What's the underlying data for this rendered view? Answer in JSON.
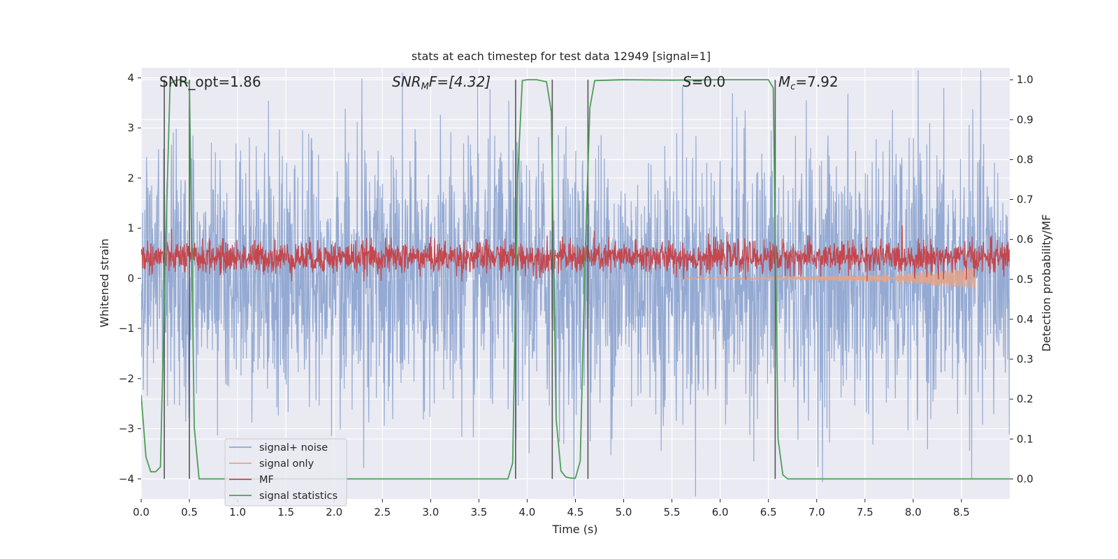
{
  "chart_data": {
    "type": "line",
    "title": "stats at each timestep for test data 12949 [signal=1]",
    "xlabel": "Time (s)",
    "ylabel_left": "Whitened strain",
    "ylabel_right": "Detection probability/MF",
    "xlim": [
      0.0,
      9.0
    ],
    "ylim_left": [
      -4.4,
      4.2
    ],
    "ylim_right": [
      -0.05,
      1.03
    ],
    "xticks": [
      0.0,
      0.5,
      1.0,
      1.5,
      2.0,
      2.5,
      3.0,
      3.5,
      4.0,
      4.5,
      5.0,
      5.5,
      6.0,
      6.5,
      7.0,
      7.5,
      8.0,
      8.5
    ],
    "xtick_labels": [
      "0.0",
      "0.5",
      "1.0",
      "1.5",
      "2.0",
      "2.5",
      "3.0",
      "3.5",
      "4.0",
      "4.5",
      "5.0",
      "5.5",
      "6.0",
      "6.5",
      "7.0",
      "7.5",
      "8.0",
      "8.5"
    ],
    "yticks_left": [
      -4,
      -3,
      -2,
      -1,
      0,
      1,
      2,
      3,
      4
    ],
    "ytick_labels_left": [
      "−4",
      "−3",
      "−2",
      "−1",
      "0",
      "1",
      "2",
      "3",
      "4"
    ],
    "yticks_right": [
      0.0,
      0.1,
      0.2,
      0.3,
      0.4,
      0.5,
      0.6,
      0.7,
      0.8,
      0.9,
      1.0
    ],
    "ytick_labels_right": [
      "0.0",
      "0.1",
      "0.2",
      "0.3",
      "0.4",
      "0.5",
      "0.6",
      "0.7",
      "0.8",
      "0.9",
      "1.0"
    ],
    "grid": true,
    "legend_position": "lower-left",
    "annotations": {
      "snr_opt": "SNR_opt=1.86",
      "snr_mf_prefix": "SNR",
      "snr_mf_sub": "M",
      "snr_mf_suffix": "F=[4.32]",
      "s_prefix": "S",
      "s_suffix": "=0.0",
      "mc_prefix": "M",
      "mc_sub": "c",
      "mc_suffix": "=7.92"
    },
    "series": [
      {
        "name": "signal+ noise",
        "color": "#8fa6d1",
        "style": "noise band, amplitude roughly ±2 with peaks to about ±3.5",
        "amplitude": 1.35
      },
      {
        "name": "signal only",
        "color": "#e3a48a",
        "style": "small chirp between 5.6 s and 8.65 s, amplitude below 0.25",
        "start": 5.6,
        "end": 8.65
      },
      {
        "name": "MF",
        "color": "#c4474d",
        "style": "noisy trace on right axis between about 0.50 and 0.62",
        "level": 0.555
      },
      {
        "name": "signal statistics",
        "color": "#4c9e57",
        "x": [
          0.0,
          0.05,
          0.1,
          0.15,
          0.2,
          0.25,
          0.3,
          0.35,
          0.4,
          0.45,
          0.5,
          0.55,
          0.6,
          0.65,
          0.7,
          1.0,
          2.0,
          3.0,
          3.8,
          3.85,
          3.9,
          3.95,
          4.0,
          4.1,
          4.2,
          4.25,
          4.3,
          4.35,
          4.4,
          4.45,
          4.5,
          4.55,
          4.6,
          4.65,
          4.7,
          5.0,
          5.5,
          6.0,
          6.5,
          6.55,
          6.6,
          6.65,
          6.7,
          7.0,
          8.0,
          9.0
        ],
        "y": [
          0.21,
          0.055,
          0.018,
          0.018,
          0.03,
          0.55,
          0.99,
          0.998,
          1.0,
          0.996,
          0.99,
          0.13,
          0.0,
          0.0,
          0.0,
          0.0,
          0.0,
          0.0,
          0.0,
          0.04,
          0.75,
          0.998,
          1.0,
          1.0,
          0.995,
          0.92,
          0.15,
          0.02,
          0.005,
          0.002,
          0.002,
          0.045,
          0.55,
          0.93,
          0.998,
          1.0,
          0.999,
          1.0,
          1.0,
          0.98,
          0.1,
          0.01,
          0.0,
          0.0,
          0.0,
          0.0
        ]
      }
    ],
    "vertical_lines": [
      0.24,
      0.5,
      3.88,
      4.26,
      4.63,
      6.57
    ]
  }
}
